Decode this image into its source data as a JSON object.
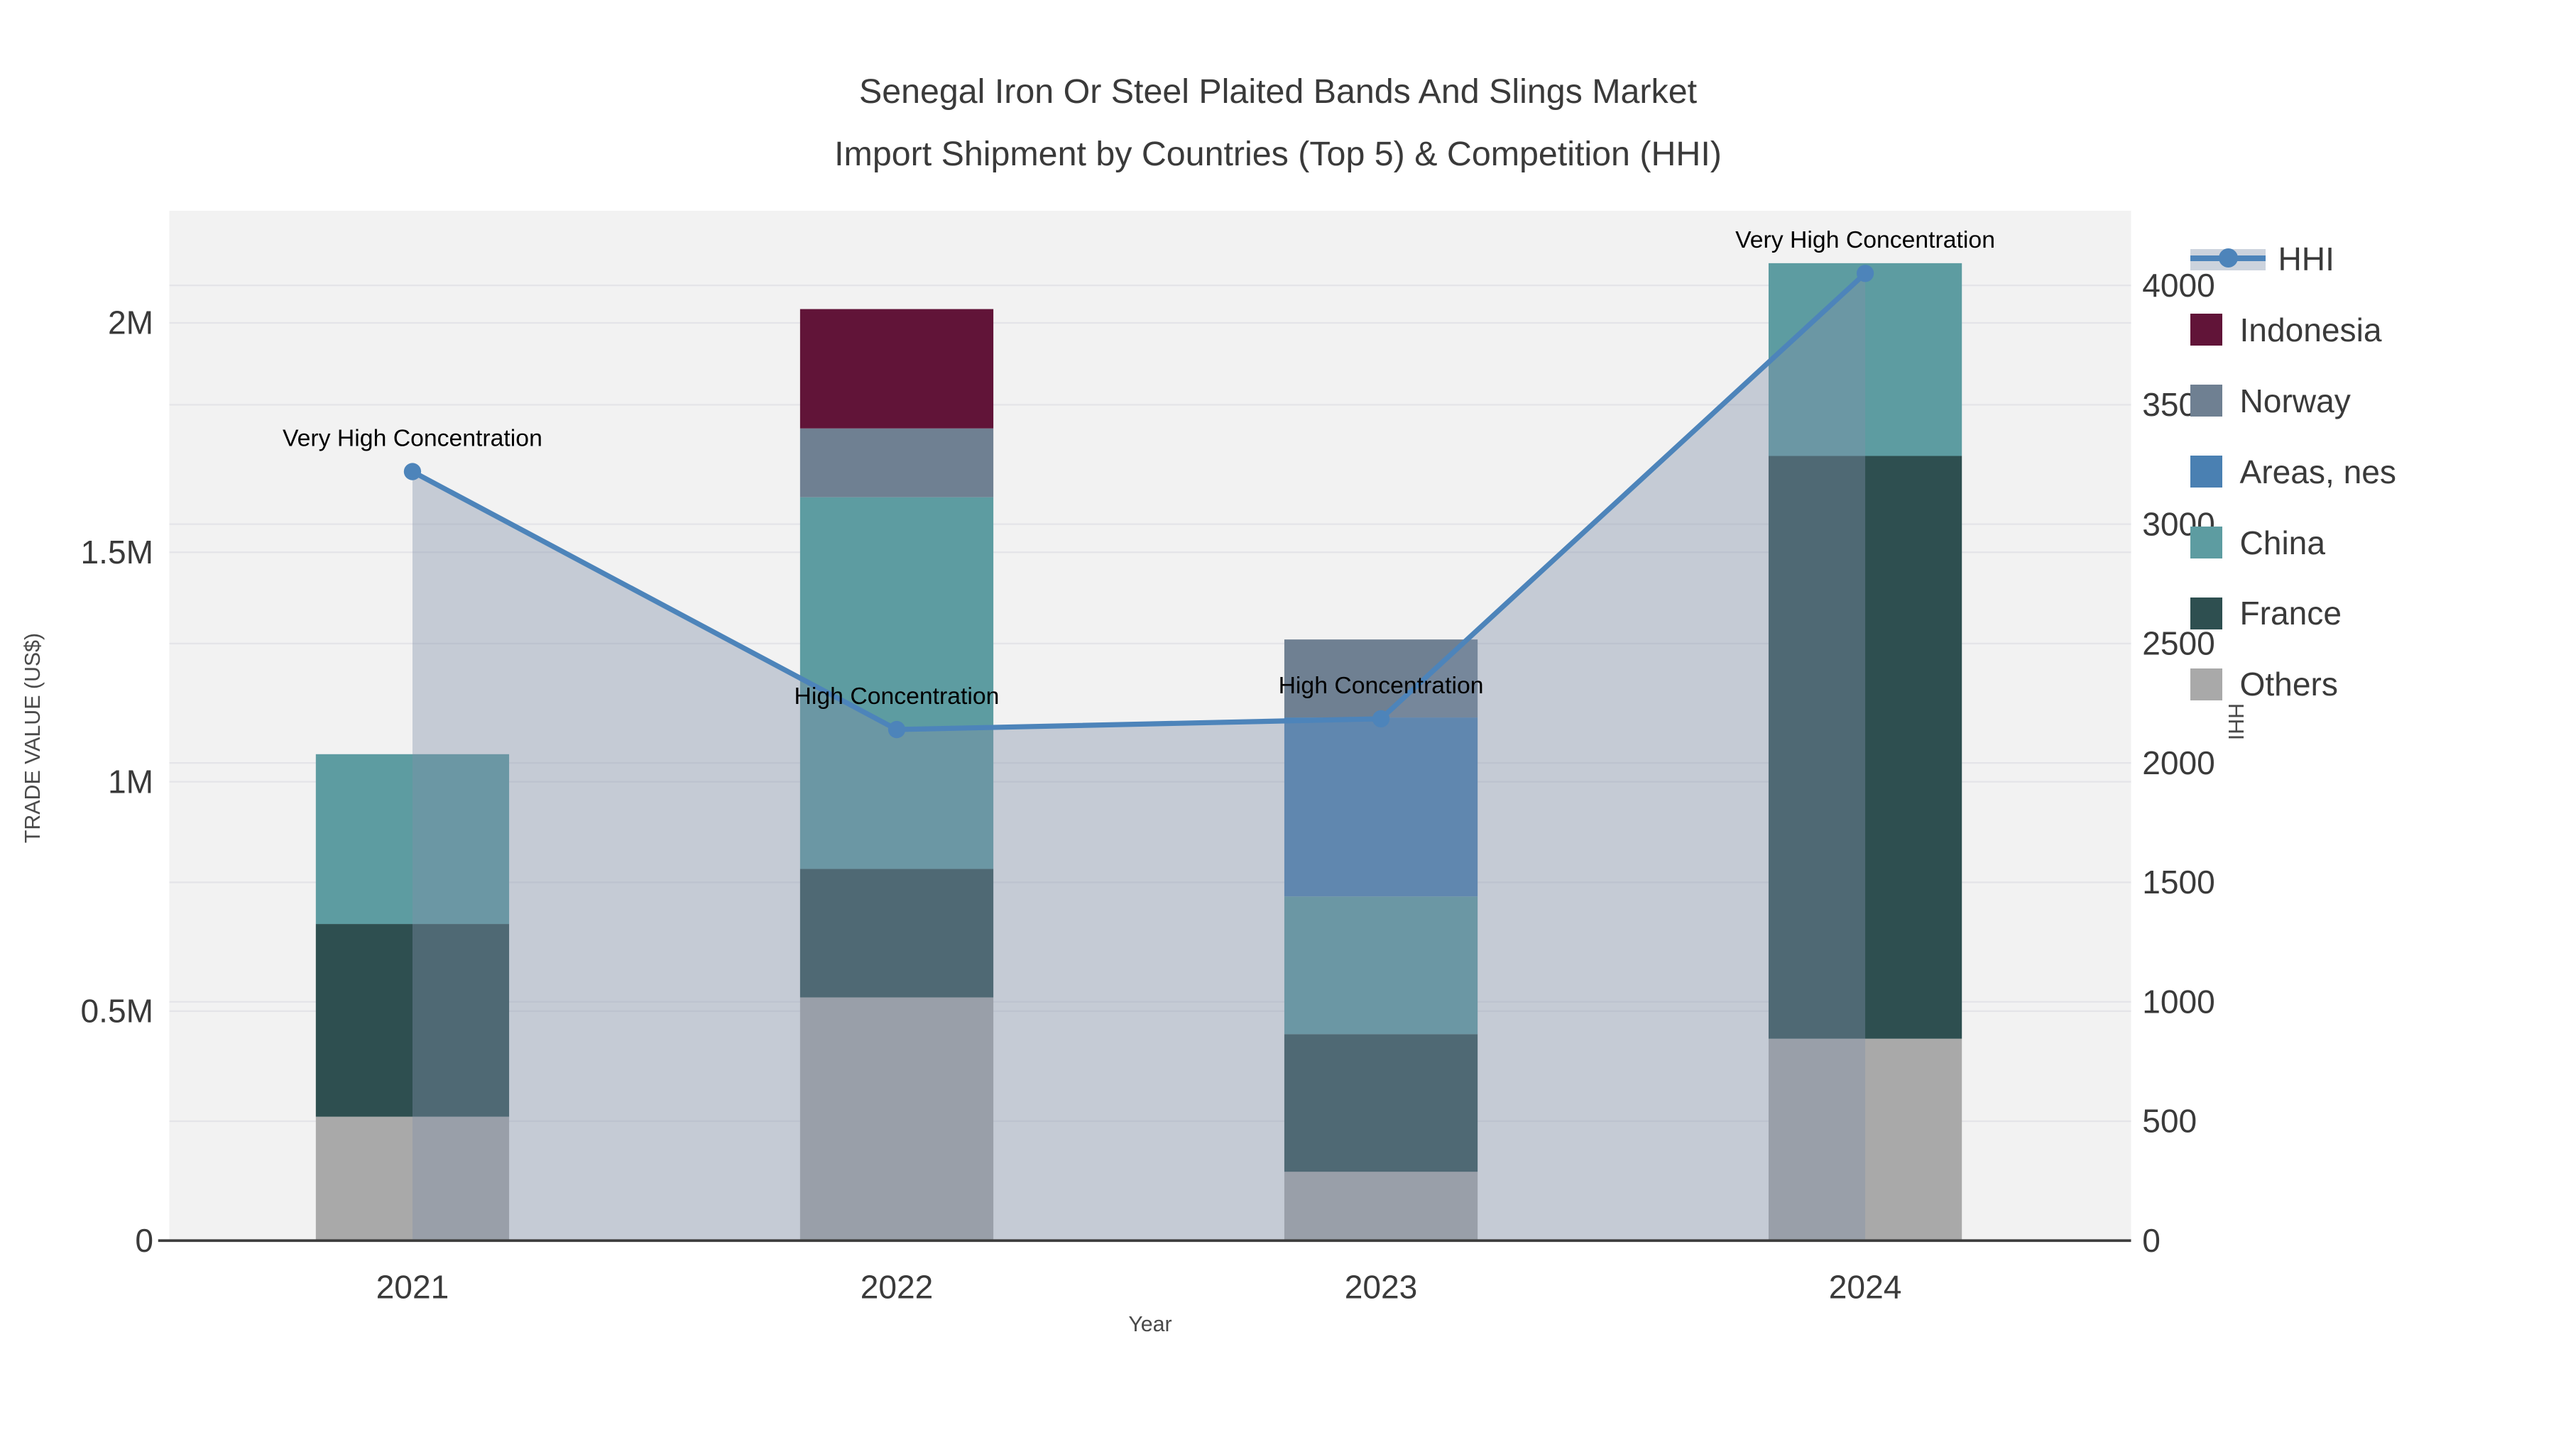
{
  "chart_data": {
    "type": "bar",
    "title": "Senegal Iron Or Steel Plaited Bands And Slings Market",
    "subtitle": "Import Shipment by Countries (Top 5) & Competition (HHI)",
    "categories": [
      "2021",
      "2022",
      "2023",
      "2024"
    ],
    "value_unit": "M (US$)",
    "series": [
      {
        "name": "Others",
        "color": "#a9a9a9",
        "values": [
          0.27,
          0.53,
          0.15,
          0.44
        ]
      },
      {
        "name": "France",
        "color": "#2e4f50",
        "values": [
          0.42,
          0.28,
          0.3,
          1.27
        ]
      },
      {
        "name": "China",
        "color": "#5d9ca1",
        "values": [
          0.37,
          0.81,
          0.3,
          0.42
        ]
      },
      {
        "name": "Areas, nes",
        "color": "#4a80b2",
        "values": [
          0,
          0,
          0.39,
          0
        ]
      },
      {
        "name": "Norway",
        "color": "#6f8092",
        "values": [
          0,
          0.15,
          0.17,
          0
        ]
      },
      {
        "name": "Indonesia",
        "color": "#611438",
        "values": [
          0,
          0.26,
          0,
          0
        ]
      }
    ],
    "line_series": {
      "name": "HHI",
      "color": "#4d84ba",
      "marker": "circle",
      "area_fill": "rgba(130,145,170,0.40)",
      "values": [
        3220,
        2140,
        2185,
        4050
      ]
    },
    "annotations": [
      {
        "category": "2021",
        "text": "Very High Concentration"
      },
      {
        "category": "2022",
        "text": "High Concentration"
      },
      {
        "category": "2023",
        "text": "High Concentration"
      },
      {
        "category": "2024",
        "text": "Very High Concentration"
      }
    ],
    "y_left": {
      "label": "TRADE VALUE (US$)",
      "ticks": [
        {
          "v": 0,
          "t": "0"
        },
        {
          "v": 0.5,
          "t": "0.5M"
        },
        {
          "v": 1,
          "t": "1M"
        },
        {
          "v": 1.5,
          "t": "1.5M"
        },
        {
          "v": 2,
          "t": "2M"
        }
      ]
    },
    "y_right": {
      "label": "HHI",
      "ticks": [
        {
          "v": 0,
          "t": "0"
        },
        {
          "v": 500,
          "t": "500"
        },
        {
          "v": 1000,
          "t": "1000"
        },
        {
          "v": 1500,
          "t": "1500"
        },
        {
          "v": 2000,
          "t": "2000"
        },
        {
          "v": 2500,
          "t": "2500"
        },
        {
          "v": 3000,
          "t": "3000"
        },
        {
          "v": 3500,
          "t": "3500"
        },
        {
          "v": 4000,
          "t": "4000"
        }
      ]
    },
    "x_axis": {
      "label": "Year"
    },
    "legend_order": [
      "HHI",
      "Indonesia",
      "Norway",
      "Areas, nes",
      "China",
      "France",
      "Others"
    ],
    "grid": true,
    "legend_position": "right"
  },
  "colors": {
    "plot_background": "#f2f2f2",
    "gridline": "#e4e4e8",
    "axis_line": "#3d3d3d",
    "tick_text": "#3a3a3a",
    "annotation_text": "#000000"
  }
}
